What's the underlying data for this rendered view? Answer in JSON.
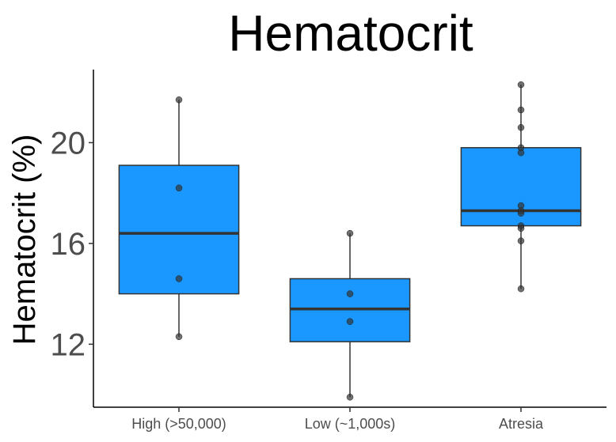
{
  "chart_data": {
    "type": "boxplot",
    "title": "Hematocrit",
    "xlabel": "",
    "ylabel": "Hematocrit (%)",
    "ylim": [
      9.5,
      22.9
    ],
    "yticks": [
      12,
      16,
      20
    ],
    "grid": false,
    "legend": "none",
    "box_color": "#1a98ff",
    "box_edge_color": "#333333",
    "point_color": "#333333",
    "categories": [
      "High (>50,000)",
      "Low (~1,000s)",
      "Atresia"
    ],
    "boxes": [
      {
        "category": "High (>50,000)",
        "whisker_low": 12.3,
        "q1": 14.0,
        "median": 16.4,
        "q3": 19.1,
        "whisker_high": 21.7,
        "points": [
          21.7,
          18.2,
          14.6,
          12.3
        ]
      },
      {
        "category": "Low (~1,000s)",
        "whisker_low": 9.9,
        "q1": 12.1,
        "median": 13.4,
        "q3": 14.6,
        "whisker_high": 16.4,
        "points": [
          16.4,
          14.0,
          12.9,
          9.9
        ]
      },
      {
        "category": "Atresia",
        "whisker_low": 14.2,
        "q1": 16.7,
        "median": 17.3,
        "q3": 19.8,
        "whisker_high": 22.3,
        "points": [
          22.3,
          21.3,
          20.6,
          19.8,
          19.6,
          17.5,
          17.3,
          17.2,
          16.7,
          16.6,
          16.1,
          14.2
        ]
      }
    ]
  }
}
